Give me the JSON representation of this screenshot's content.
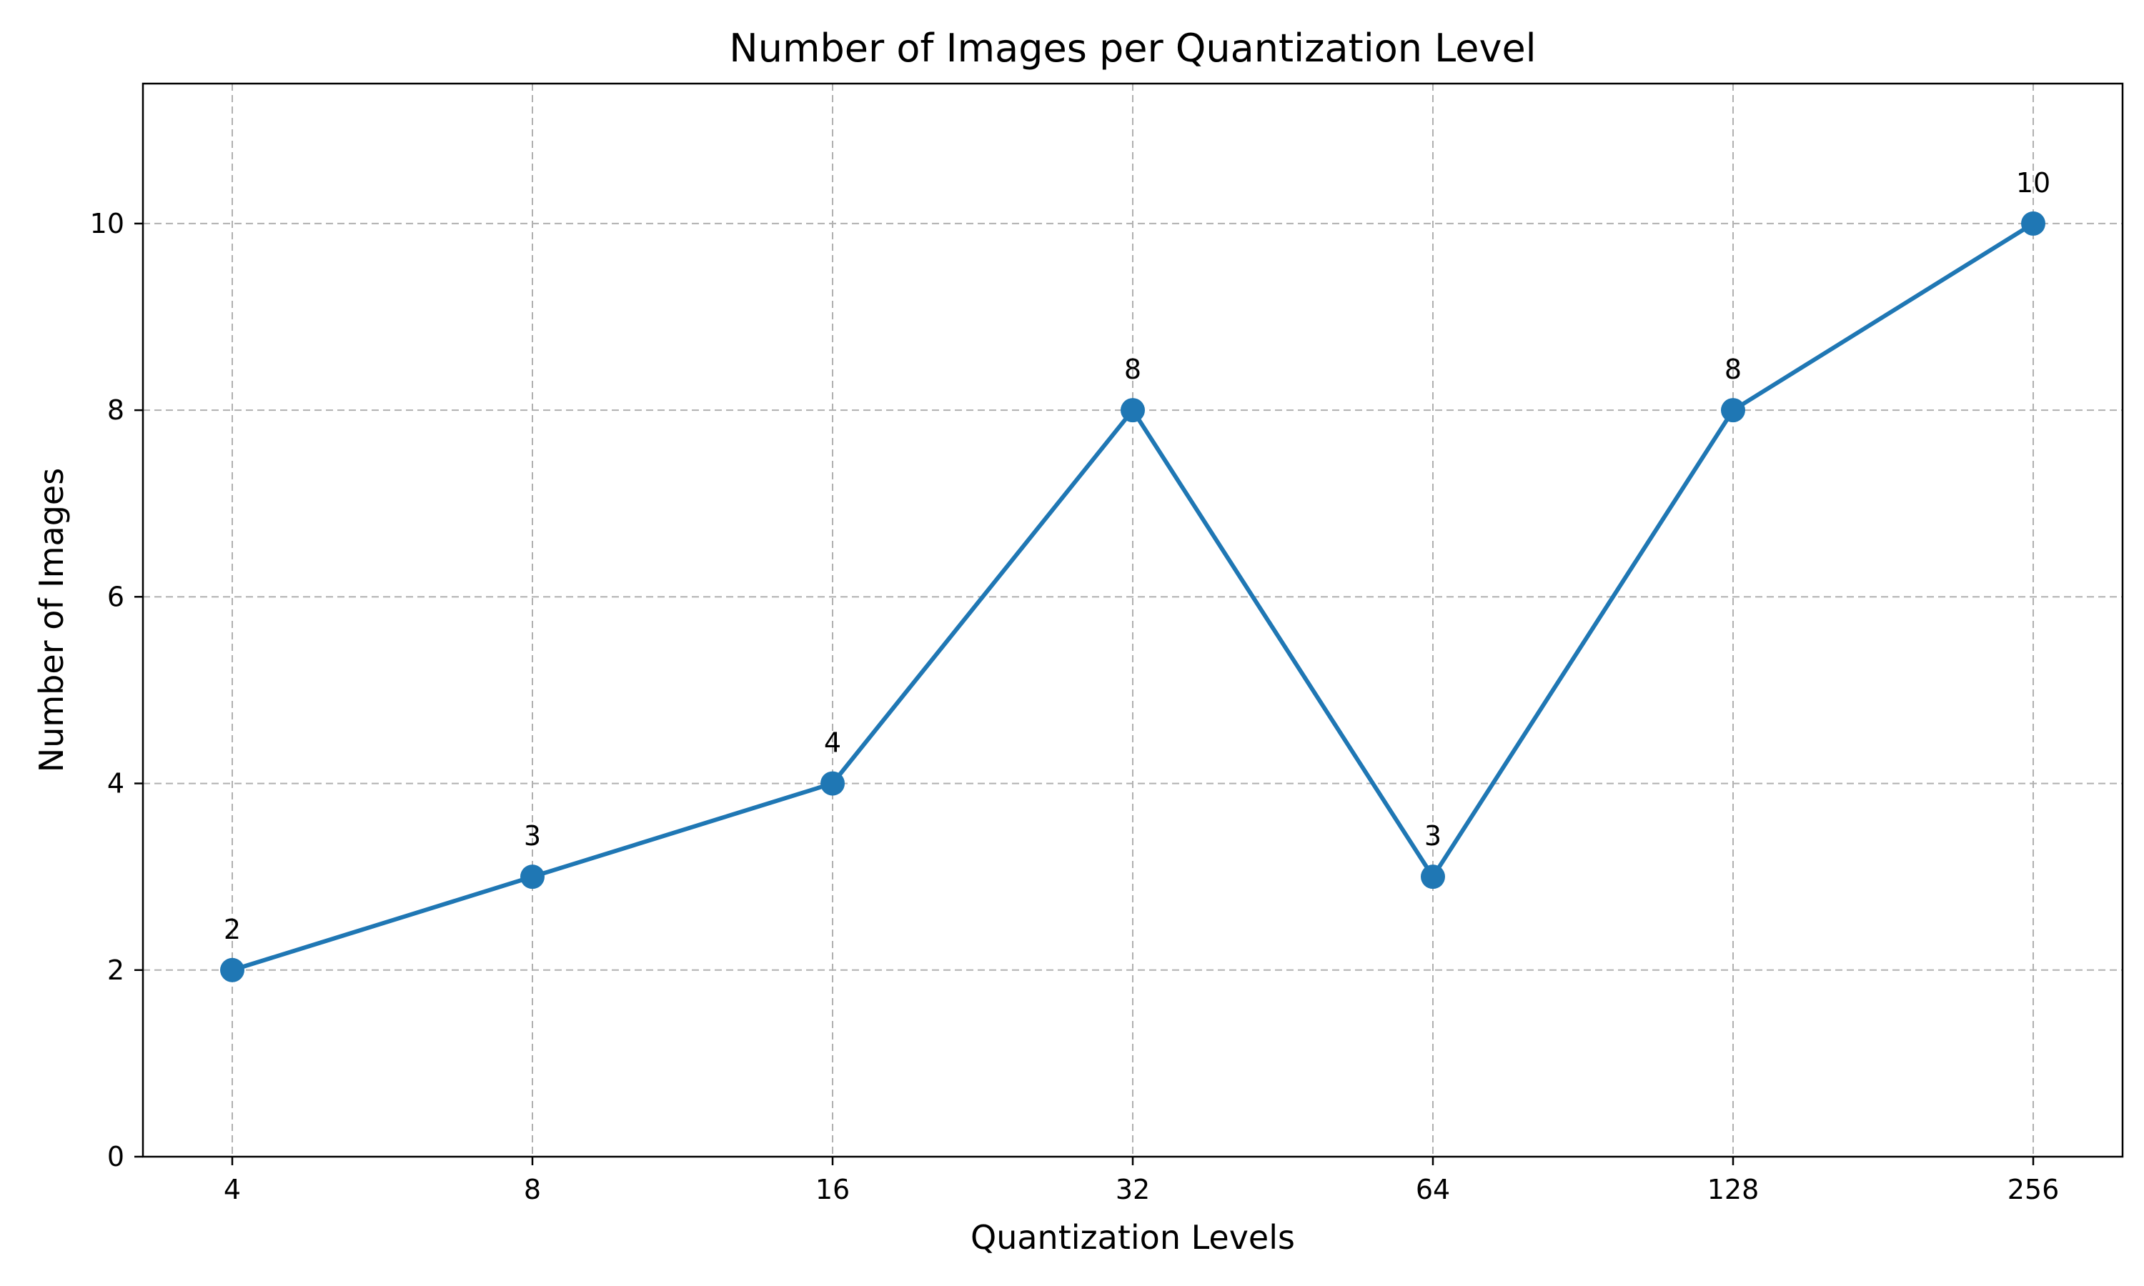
{
  "chart_data": {
    "type": "line",
    "title": "Number of Images per Quantization Level",
    "xlabel": "Quantization Levels",
    "ylabel": "Number of Images",
    "categories": [
      "4",
      "8",
      "16",
      "32",
      "64",
      "128",
      "256"
    ],
    "series": [
      {
        "values": [
          2,
          3,
          4,
          8,
          3,
          8,
          10
        ]
      }
    ],
    "data_labels": [
      "2",
      "3",
      "4",
      "8",
      "3",
      "8",
      "10"
    ],
    "ylim": [
      0,
      11.5
    ],
    "yticks": [
      0,
      2,
      4,
      6,
      8,
      10
    ],
    "ytick_labels": [
      "0",
      "2",
      "4",
      "6",
      "8",
      "10"
    ],
    "grid": true,
    "grid_style": "dashed",
    "colors": {
      "line": "#1f77b4",
      "grid": "#b0b0b0",
      "axis": "#000000"
    }
  }
}
